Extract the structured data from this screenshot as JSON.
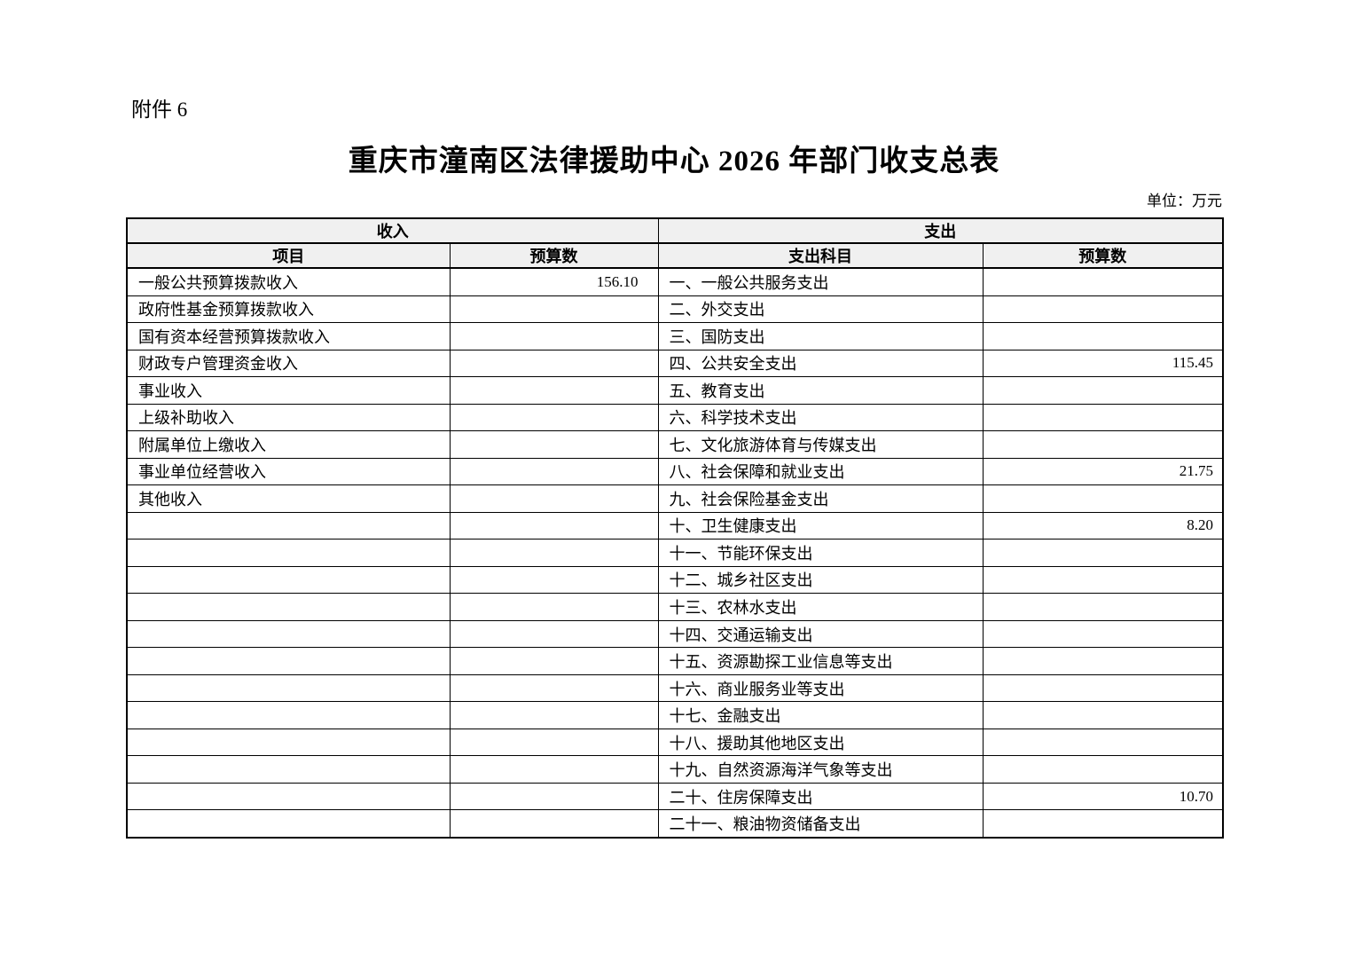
{
  "attachment_label": "附件 6",
  "title": "重庆市潼南区法律援助中心 2026 年部门收支总表",
  "unit_note": "单位：万元",
  "table": {
    "income_header": "收入",
    "expense_header": "支出",
    "columns": {
      "income_item": "项目",
      "income_budget": "预算数",
      "expense_item": "支出科目",
      "expense_budget": "预算数"
    },
    "rows": [
      {
        "income_item": "一般公共预算拨款收入",
        "income_budget": "156.10",
        "expense_item": "一、一般公共服务支出",
        "expense_budget": ""
      },
      {
        "income_item": "政府性基金预算拨款收入",
        "income_budget": "",
        "expense_item": "二、外交支出",
        "expense_budget": ""
      },
      {
        "income_item": "国有资本经营预算拨款收入",
        "income_budget": "",
        "expense_item": "三、国防支出",
        "expense_budget": ""
      },
      {
        "income_item": "财政专户管理资金收入",
        "income_budget": "",
        "expense_item": "四、公共安全支出",
        "expense_budget": "115.45"
      },
      {
        "income_item": "事业收入",
        "income_budget": "",
        "expense_item": "五、教育支出",
        "expense_budget": ""
      },
      {
        "income_item": "上级补助收入",
        "income_budget": "",
        "expense_item": "六、科学技术支出",
        "expense_budget": ""
      },
      {
        "income_item": "附属单位上缴收入",
        "income_budget": "",
        "expense_item": "七、文化旅游体育与传媒支出",
        "expense_budget": ""
      },
      {
        "income_item": "事业单位经营收入",
        "income_budget": "",
        "expense_item": "八、社会保障和就业支出",
        "expense_budget": "21.75"
      },
      {
        "income_item": "其他收入",
        "income_budget": "",
        "expense_item": "九、社会保险基金支出",
        "expense_budget": ""
      },
      {
        "income_item": "",
        "income_budget": "",
        "expense_item": "十、卫生健康支出",
        "expense_budget": "8.20"
      },
      {
        "income_item": "",
        "income_budget": "",
        "expense_item": "十一、节能环保支出",
        "expense_budget": ""
      },
      {
        "income_item": "",
        "income_budget": "",
        "expense_item": "十二、城乡社区支出",
        "expense_budget": ""
      },
      {
        "income_item": "",
        "income_budget": "",
        "expense_item": "十三、农林水支出",
        "expense_budget": ""
      },
      {
        "income_item": "",
        "income_budget": "",
        "expense_item": "十四、交通运输支出",
        "expense_budget": ""
      },
      {
        "income_item": "",
        "income_budget": "",
        "expense_item": "十五、资源勘探工业信息等支出",
        "expense_budget": ""
      },
      {
        "income_item": "",
        "income_budget": "",
        "expense_item": "十六、商业服务业等支出",
        "expense_budget": ""
      },
      {
        "income_item": "",
        "income_budget": "",
        "expense_item": "十七、金融支出",
        "expense_budget": ""
      },
      {
        "income_item": "",
        "income_budget": "",
        "expense_item": "十八、援助其他地区支出",
        "expense_budget": ""
      },
      {
        "income_item": "",
        "income_budget": "",
        "expense_item": "十九、自然资源海洋气象等支出",
        "expense_budget": ""
      },
      {
        "income_item": "",
        "income_budget": "",
        "expense_item": "二十、住房保障支出",
        "expense_budget": "10.70"
      },
      {
        "income_item": "",
        "income_budget": "",
        "expense_item": "二十一、粮油物资储备支出",
        "expense_budget": ""
      }
    ]
  }
}
